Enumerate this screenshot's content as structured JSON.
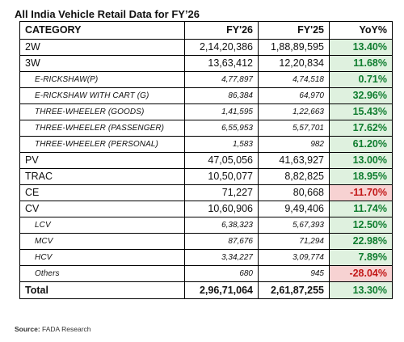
{
  "title": "All India Vehicle Retail Data for FY’26",
  "headers": {
    "category": "CATEGORY",
    "fy26": "FY'26",
    "fy25": "FY'25",
    "yoy": "YoY%"
  },
  "rows": [
    {
      "category": "2W",
      "fy26": "2,14,20,386",
      "fy25": "1,88,89,595",
      "yoy": "13.40%"
    },
    {
      "category": "3W",
      "fy26": "13,63,412",
      "fy25": "12,20,834",
      "yoy": "11.68%"
    },
    {
      "category": "E-RICKSHAW(P)",
      "fy26": "4,77,897",
      "fy25": "4,74,518",
      "yoy": "0.71%"
    },
    {
      "category": "E-RICKSHAW WITH CART (G)",
      "fy26": "86,384",
      "fy25": "64,970",
      "yoy": "32.96%"
    },
    {
      "category": "THREE-WHEELER (GOODS)",
      "fy26": "1,41,595",
      "fy25": "1,22,663",
      "yoy": "15.43%"
    },
    {
      "category": "THREE-WHEELER (PASSENGER)",
      "fy26": "6,55,953",
      "fy25": "5,57,701",
      "yoy": "17.62%"
    },
    {
      "category": "THREE-WHEELER (PERSONAL)",
      "fy26": "1,583",
      "fy25": "982",
      "yoy": "61.20%"
    },
    {
      "category": "PV",
      "fy26": "47,05,056",
      "fy25": "41,63,927",
      "yoy": "13.00%"
    },
    {
      "category": "TRAC",
      "fy26": "10,50,077",
      "fy25": "8,82,825",
      "yoy": "18.95%"
    },
    {
      "category": "CE",
      "fy26": "71,227",
      "fy25": "80,668",
      "yoy": "-11.70%"
    },
    {
      "category": "CV",
      "fy26": "10,60,906",
      "fy25": "9,49,406",
      "yoy": "11.74%"
    },
    {
      "category": "LCV",
      "fy26": "6,38,323",
      "fy25": "5,67,393",
      "yoy": "12.50%"
    },
    {
      "category": "MCV",
      "fy26": "87,676",
      "fy25": "71,294",
      "yoy": "22.98%"
    },
    {
      "category": "HCV",
      "fy26": "3,34,227",
      "fy25": "3,09,774",
      "yoy": "7.89%"
    },
    {
      "category": "Others",
      "fy26": "680",
      "fy25": "945",
      "yoy": "-28.04%"
    }
  ],
  "total": {
    "category": "Total",
    "fy26": "2,96,71,064",
    "fy25": "2,61,87,255",
    "yoy": "13.30%"
  },
  "source": {
    "label": "Source:",
    "value": "FADA Research"
  },
  "colors": {
    "positive_bg": "#dff1df",
    "positive_text": "#0f7d2f",
    "negative_bg": "#f7d2d2",
    "negative_text": "#c21717"
  }
}
